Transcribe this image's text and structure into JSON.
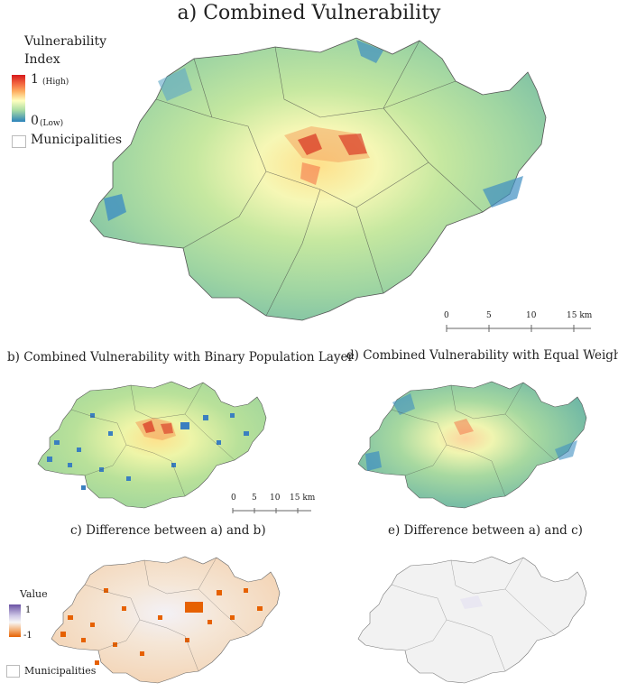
{
  "title": "a) Combined Vulnerability",
  "legend_main": {
    "title_line1": "Vulnerability",
    "title_line2": "Index",
    "high_value": "1",
    "high_label": "(High)",
    "low_value": "0",
    "low_label": "(Low)",
    "municipalities": "Municipalities",
    "colors": [
      "#d7191c",
      "#fdae61",
      "#ffffbf",
      "#abdda4",
      "#2b83ba"
    ]
  },
  "scale_main": {
    "ticks": [
      "0",
      "5",
      "10",
      "15 km"
    ]
  },
  "panel_b": {
    "title": "b) Combined Vulnerability with Binary Population Layer"
  },
  "panel_d": {
    "title": "d) Combined Vulnerability with Equal Weights"
  },
  "scale_small": {
    "ticks": [
      "0",
      "5",
      "10",
      "15 km"
    ]
  },
  "panel_c": {
    "title": "c) Difference between a) and b)"
  },
  "panel_e": {
    "title": "e) Difference between a) and c)"
  },
  "legend_diff": {
    "title": "Value",
    "high": "1",
    "low": "-1",
    "municipalities": "Municipalities",
    "colors": [
      "#6a51a3",
      "#f7f7f7",
      "#e66101"
    ]
  }
}
